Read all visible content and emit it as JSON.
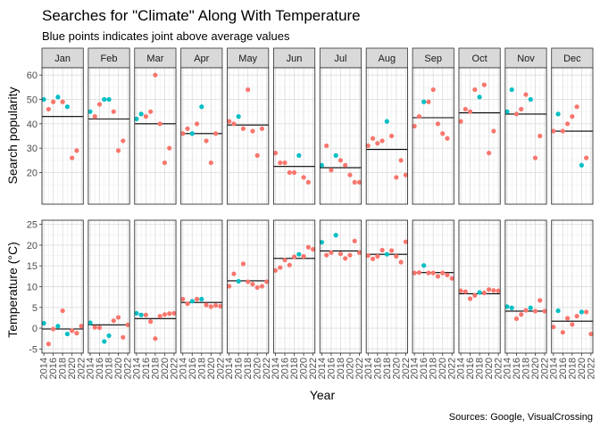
{
  "chart_data": {
    "type": "scatter",
    "title": "Searches for \"Climate\" Along With Temperature",
    "subtitle": "Blue points indicates joint above average values",
    "caption": "Sources: Google, VisualCrossing",
    "xlabel": "Year",
    "x_ticks": [
      "2014",
      "2016",
      "2018",
      "2020",
      "2022"
    ],
    "months": [
      "Jan",
      "Feb",
      "Mar",
      "Apr",
      "May",
      "Jun",
      "Jul",
      "Aug",
      "Sep",
      "Oct",
      "Nov",
      "Dec"
    ],
    "years": [
      2014,
      2015,
      2016,
      2017,
      2018,
      2019,
      2020,
      2021,
      2022
    ],
    "colors": {
      "joint_above": "#00BFC4",
      "other": "#F8766D"
    },
    "grid": true,
    "panels": [
      {
        "ylabel": "Search popularity",
        "ylim": [
          7,
          63
        ],
        "y_ticks": [
          20,
          30,
          40,
          50,
          60
        ],
        "mean": [
          43,
          42,
          40,
          36,
          39.5,
          22.5,
          22,
          29.5,
          42.5,
          44.5,
          44,
          37
        ],
        "values": [
          [
            50,
            46,
            49,
            51,
            49,
            47,
            26,
            29,
            null
          ],
          [
            45,
            43,
            48,
            50,
            50,
            45,
            29,
            33,
            null
          ],
          [
            42,
            44,
            43,
            45,
            60,
            40,
            24,
            30,
            null
          ],
          [
            36,
            38,
            36,
            40,
            47,
            33,
            24,
            36,
            null
          ],
          [
            41,
            40,
            43,
            38,
            54,
            37,
            27,
            38,
            null
          ],
          [
            28,
            24,
            24,
            20,
            20,
            27,
            18,
            16,
            null
          ],
          [
            23,
            31,
            21,
            27,
            25,
            23,
            19,
            16,
            16
          ],
          [
            31,
            34,
            32,
            33,
            41,
            35,
            18,
            25,
            19
          ],
          [
            39,
            43,
            49,
            49,
            54,
            40,
            36,
            34,
            null
          ],
          [
            41,
            46,
            45,
            54,
            51,
            56,
            28,
            37,
            null
          ],
          [
            45,
            54,
            44,
            46,
            52,
            50,
            26,
            35,
            null
          ],
          [
            37,
            44,
            37,
            40,
            43,
            47,
            23,
            26,
            null
          ]
        ],
        "joint_above": [
          [
            0,
            3,
            5
          ],
          [
            0,
            3,
            4
          ],
          [
            0,
            1
          ],
          [
            2,
            4
          ],
          [
            2
          ],
          [
            5
          ],
          [
            0,
            3
          ],
          [
            4
          ],
          [
            2
          ],
          [
            4
          ],
          [
            0,
            1,
            5
          ],
          [
            1,
            6
          ]
        ]
      },
      {
        "ylabel": "Temperature (°C)",
        "ylim": [
          -6,
          26
        ],
        "y_ticks": [
          -5,
          0,
          5,
          10,
          15,
          20,
          25
        ],
        "mean": [
          -0.2,
          0.8,
          2.3,
          6.2,
          11.4,
          16.8,
          18.6,
          17.8,
          13.4,
          8.3,
          4.1,
          1.7
        ],
        "values": [
          [
            1.2,
            -3.8,
            -0.2,
            0.5,
            4.2,
            -1.4,
            -0.6,
            -1.2,
            0.5
          ],
          [
            1.3,
            0.2,
            0.1,
            -3.2,
            -1.8,
            1.8,
            2.6,
            -2.2,
            0.8
          ],
          [
            3.6,
            3.2,
            3.2,
            1.6,
            -2.5,
            2.9,
            3.3,
            3.5,
            3.6
          ],
          [
            7.0,
            5.9,
            6.5,
            7.0,
            7.0,
            5.6,
            5.2,
            5.5,
            5.3
          ],
          [
            10.1,
            13.1,
            11.3,
            15.5,
            11.2,
            10.6,
            9.8,
            10.1,
            11.2
          ],
          [
            13.9,
            14.6,
            16.4,
            15.2,
            17.2,
            17.8,
            17.3,
            19.5,
            19.0
          ],
          [
            20.7,
            17.6,
            18.2,
            22.4,
            17.9,
            16.8,
            17.6,
            21.0,
            18.2
          ],
          [
            17.5,
            16.7,
            17.3,
            18.8,
            17.8,
            18.7,
            17.3,
            15.9,
            20.8
          ],
          [
            13.3,
            13.4,
            15.1,
            13.3,
            13.3,
            12.5,
            13.3,
            12.8,
            12.0
          ],
          [
            9.0,
            8.8,
            7.1,
            7.9,
            8.6,
            8.5,
            9.3,
            9.1,
            9.0
          ],
          [
            5.2,
            4.9,
            2.3,
            3.3,
            4.3,
            4.9,
            4.1,
            6.7,
            4.1
          ],
          [
            0.3,
            4.2,
            -1.0,
            2.4,
            0.9,
            2.9,
            3.9,
            3.9,
            -1.4
          ]
        ],
        "joint_above": [
          [
            0,
            3,
            5
          ],
          [
            0,
            3,
            4
          ],
          [
            0,
            1
          ],
          [
            2,
            4
          ],
          [
            2
          ],
          [
            5
          ],
          [
            0,
            3
          ],
          [
            4
          ],
          [
            2
          ],
          [
            4
          ],
          [
            0,
            1,
            5
          ],
          [
            1,
            6
          ]
        ]
      }
    ]
  }
}
